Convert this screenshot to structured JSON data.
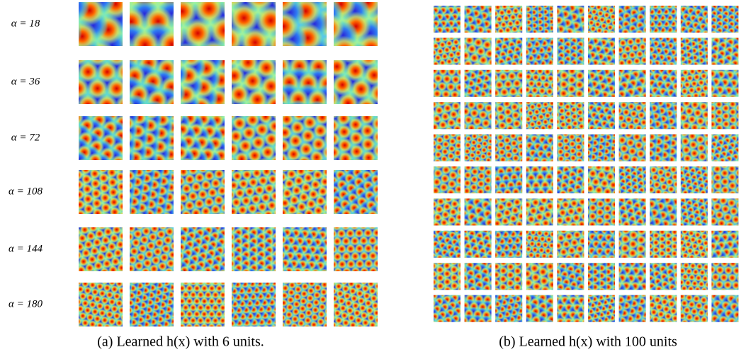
{
  "panel_a": {
    "row_labels": [
      "α = 18",
      "α = 36",
      "α = 72",
      "α = 108",
      "α = 144",
      "α = 180"
    ],
    "caption": "(a) Learned h(x) with 6 units."
  },
  "panel_b": {
    "caption": "(b) Learned h(x) with 100 units"
  }
}
